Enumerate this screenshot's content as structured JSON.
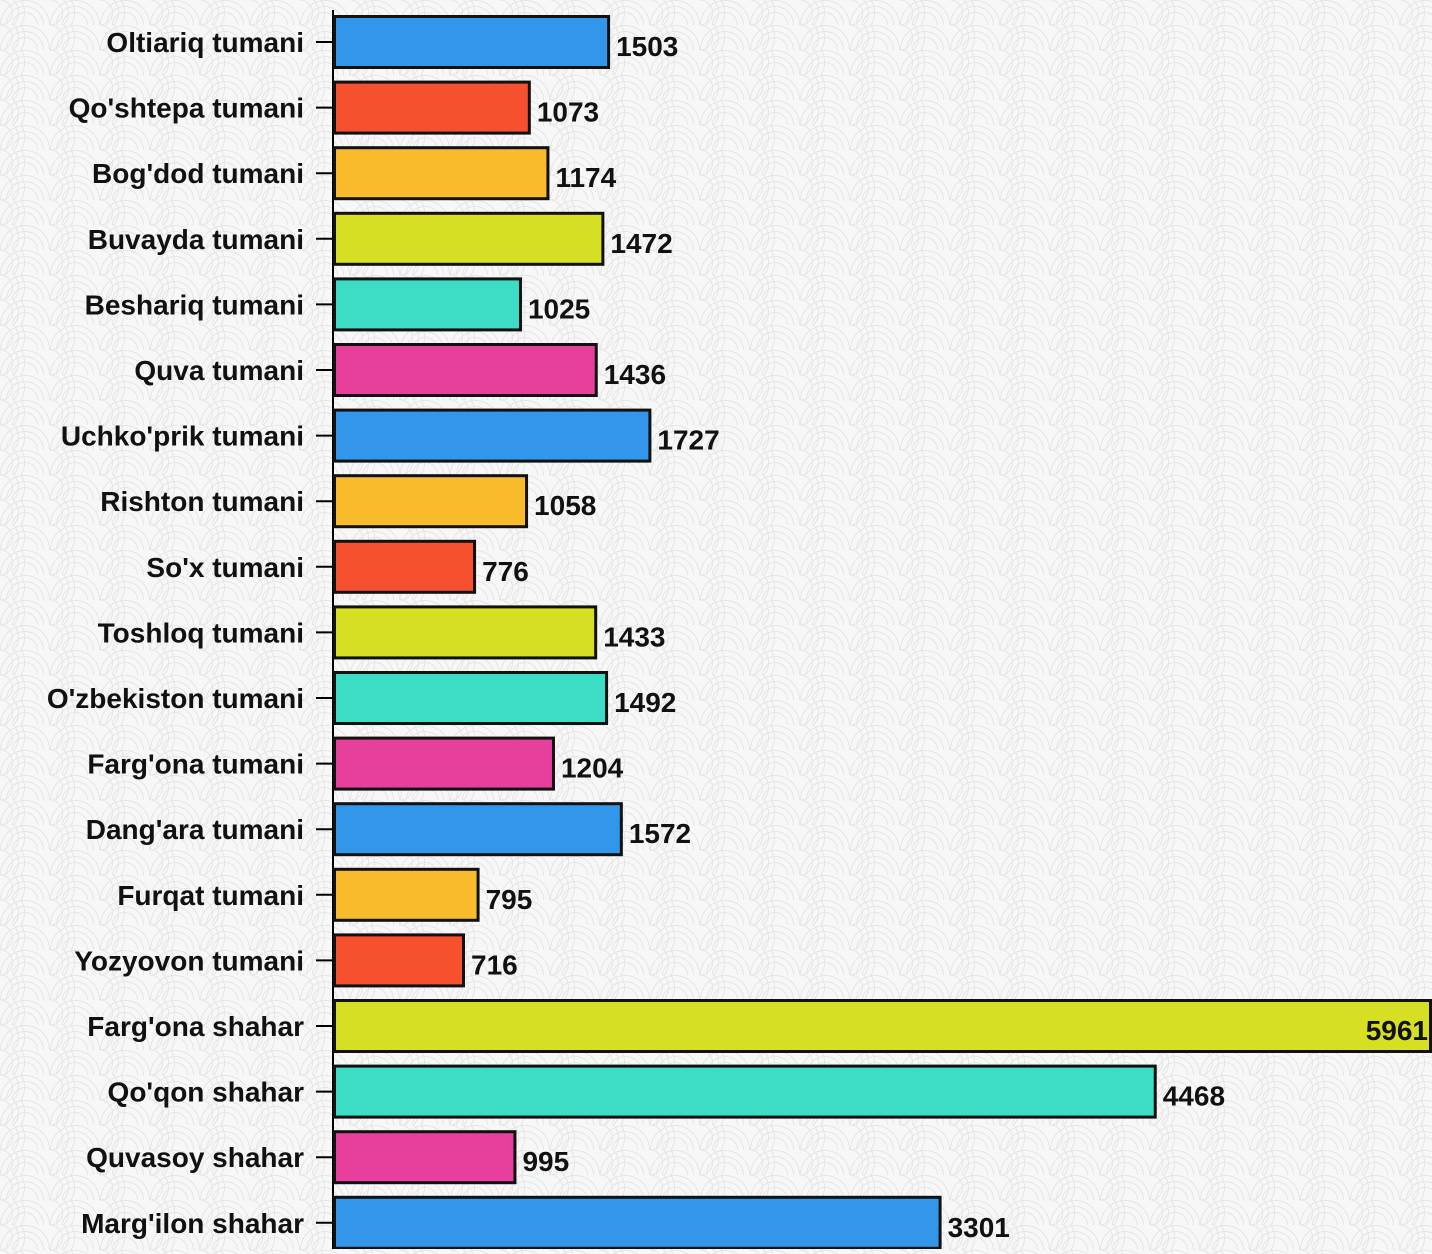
{
  "chart_data": {
    "type": "bar",
    "orientation": "horizontal",
    "categories": [
      "Oltiariq tumani",
      "Qo'shtepa tumani",
      "Bog'dod tumani",
      "Buvayda tumani",
      "Beshariq tumani",
      "Quva tumani",
      "Uchko'prik tumani",
      "Rishton tumani",
      "So'x tumani",
      "Toshloq tumani",
      "O'zbekiston tumani",
      "Farg'ona tumani",
      "Dang'ara tumani",
      "Furqat tumani",
      "Yozyovon tumani",
      "Farg'ona shahar",
      "Qo'qon shahar",
      "Quvasoy shahar",
      "Marg'ilon shahar"
    ],
    "values": [
      1503,
      1073,
      1174,
      1472,
      1025,
      1436,
      1727,
      1058,
      776,
      1433,
      1492,
      1204,
      1572,
      795,
      716,
      5961,
      4468,
      995,
      3301
    ],
    "colors": [
      "#3296ea",
      "#f7502e",
      "#f7bb2b",
      "#d6df23",
      "#3ddcc4",
      "#e63f9c",
      "#3296ea",
      "#f7bb2b",
      "#f7502e",
      "#d6df23",
      "#3ddcc4",
      "#e63f9c",
      "#3296ea",
      "#f7bb2b",
      "#f7502e",
      "#d6df23",
      "#3ddcc4",
      "#e63f9c",
      "#3296ea"
    ],
    "xlim": [
      0,
      5961
    ],
    "grid": false,
    "legend": "none",
    "data_labels": true
  }
}
